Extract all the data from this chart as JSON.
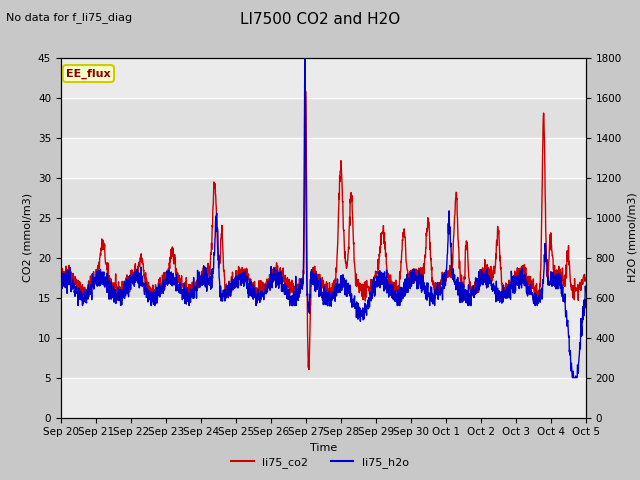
{
  "title": "LI7500 CO2 and H2O",
  "subtitle": "No data for f_li75_diag",
  "xlabel": "Time",
  "ylabel_left": "CO2 (mmol/m3)",
  "ylabel_right": "H2O (mmol/m3)",
  "ylim_left": [
    0,
    45
  ],
  "ylim_right": [
    0,
    1800
  ],
  "yticks_left": [
    0,
    5,
    10,
    15,
    20,
    25,
    30,
    35,
    40,
    45
  ],
  "yticks_right": [
    0,
    200,
    400,
    600,
    800,
    1000,
    1200,
    1400,
    1600,
    1800
  ],
  "xtick_labels": [
    "Sep 20",
    "Sep 21",
    "Sep 22",
    "Sep 23",
    "Sep 24",
    "Sep 25",
    "Sep 26",
    "Sep 27",
    "Sep 28",
    "Sep 29",
    "Sep 30",
    "Oct 1",
    "Oct 2",
    "Oct 3",
    "Oct 4",
    "Oct 5"
  ],
  "legend_labels": [
    "li75_co2",
    "li75_h2o"
  ],
  "annotation_label": "EE_flux",
  "co2_color": "#cc0000",
  "h2o_color": "#0000cc",
  "fig_bg_color": "#c8c8c8",
  "plot_bg_color": "#e0e0e0",
  "band_color": "#ebebeb",
  "annotation_text_color": "#880000",
  "annotation_box_color": "#cccc00",
  "annotation_face_color": "#ffffcc",
  "title_fontsize": 11,
  "subtitle_fontsize": 8,
  "axis_label_fontsize": 8,
  "tick_fontsize": 7.5,
  "legend_fontsize": 8,
  "linewidth": 1.0
}
